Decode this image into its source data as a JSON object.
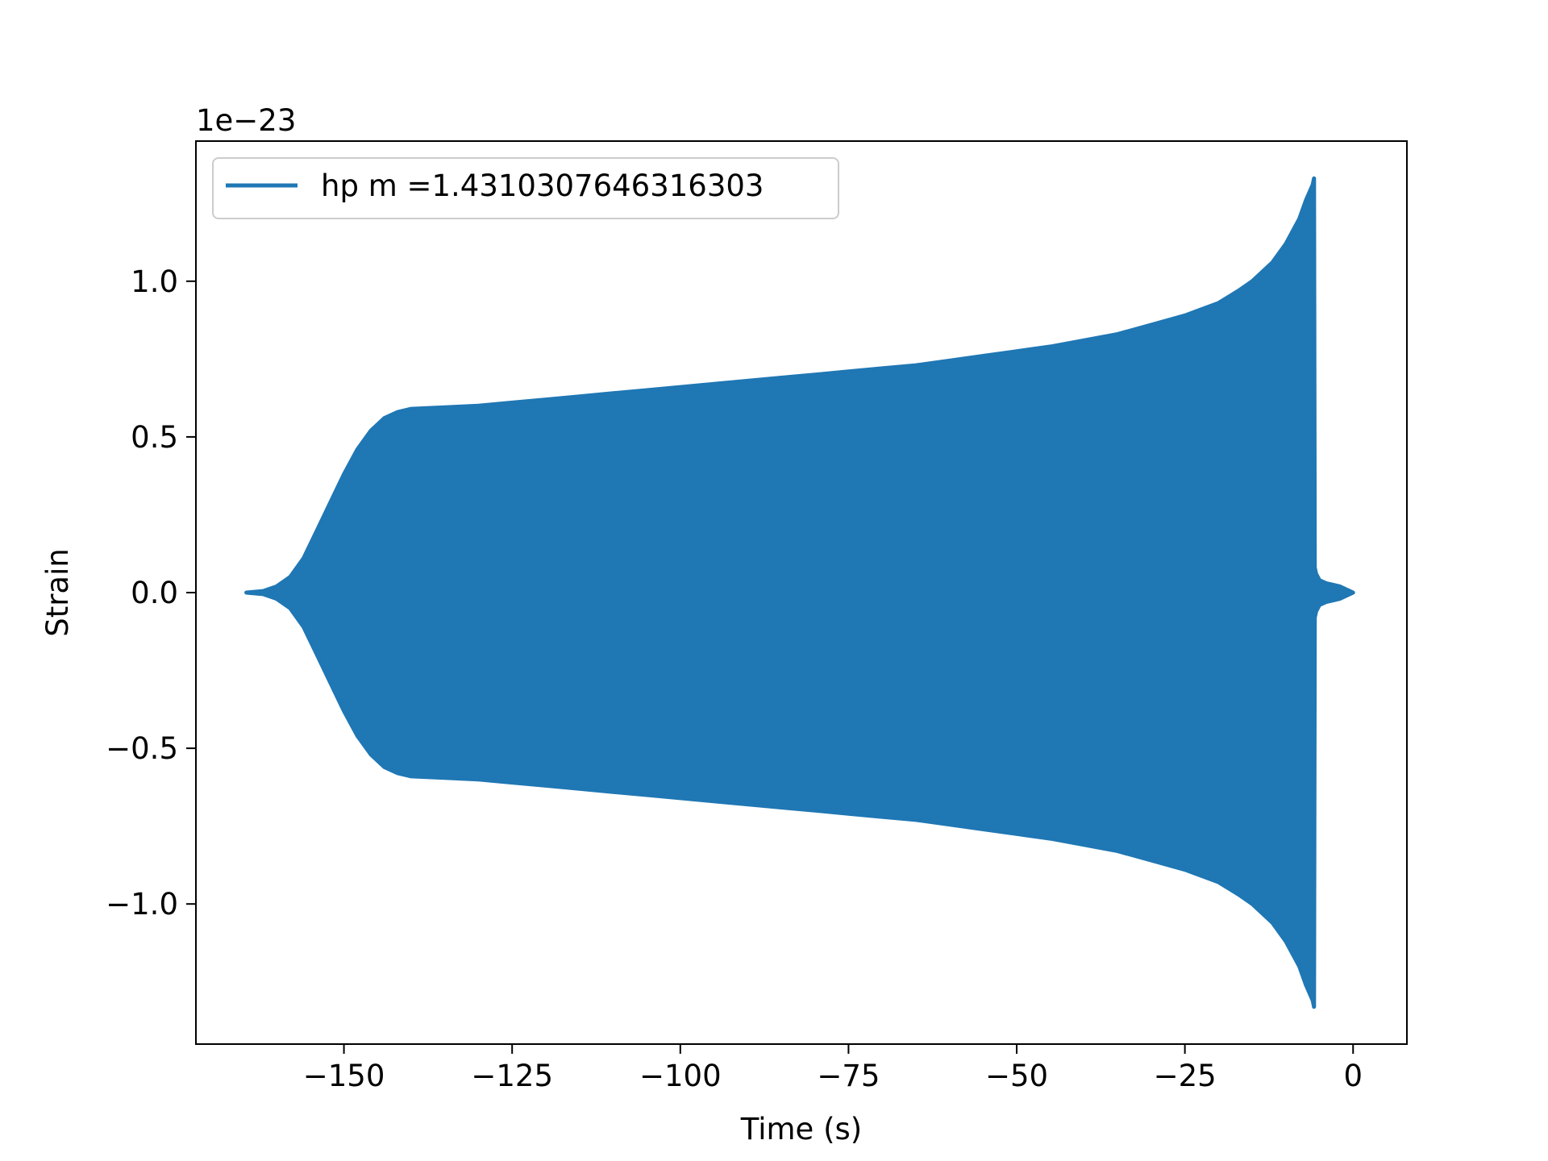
{
  "chart_data": {
    "type": "line",
    "title": "",
    "xlabel": "Time (s)",
    "ylabel": "Strain",
    "y_offset_label": "1e−23",
    "xlim": [
      -172,
      8
    ],
    "ylim": [
      -1.45,
      1.45
    ],
    "x_ticks": [
      -150,
      -125,
      -100,
      -75,
      -50,
      -25,
      0
    ],
    "x_tick_labels": [
      "−150",
      "−125",
      "−100",
      "−75",
      "−50",
      "−25",
      "0"
    ],
    "y_ticks": [
      -1.0,
      -0.5,
      0.0,
      0.5,
      1.0
    ],
    "y_tick_labels": [
      "−1.0",
      "−0.5",
      "0.0",
      "0.5",
      "1.0"
    ],
    "grid": false,
    "legend": {
      "placement": "upper-left"
    },
    "series": [
      {
        "name": "hp m =1.4310307646316303",
        "color": "#1f77b4",
        "render": "dense-oscillation-envelope",
        "envelope": {
          "t": [
            -164.5,
            -162,
            -160,
            -158,
            -156,
            -154,
            -152,
            -150,
            -148,
            -146,
            -144,
            -142,
            -140,
            -135,
            -130,
            -125,
            -120,
            -115,
            -110,
            -105,
            -100,
            -95,
            -90,
            -85,
            -80,
            -75,
            -70,
            -65,
            -60,
            -55,
            -50,
            -45,
            -40,
            -35,
            -30,
            -25,
            -20,
            -17,
            -15,
            -12,
            -10,
            -8,
            -7,
            -6,
            -5.8,
            -5.7,
            -5.5,
            -5,
            -4,
            -3,
            -2,
            -1,
            0
          ],
          "amplitude": [
            0.0,
            0.005,
            0.02,
            0.05,
            0.11,
            0.2,
            0.29,
            0.38,
            0.46,
            0.52,
            0.56,
            0.58,
            0.59,
            0.595,
            0.6,
            0.61,
            0.62,
            0.63,
            0.64,
            0.65,
            0.66,
            0.67,
            0.68,
            0.69,
            0.7,
            0.71,
            0.72,
            0.73,
            0.745,
            0.76,
            0.775,
            0.79,
            0.81,
            0.83,
            0.86,
            0.89,
            0.93,
            0.97,
            1.0,
            1.06,
            1.12,
            1.2,
            1.26,
            1.31,
            1.33,
            0.08,
            0.06,
            0.04,
            0.03,
            0.025,
            0.02,
            0.01,
            0.0
          ]
        }
      }
    ]
  }
}
